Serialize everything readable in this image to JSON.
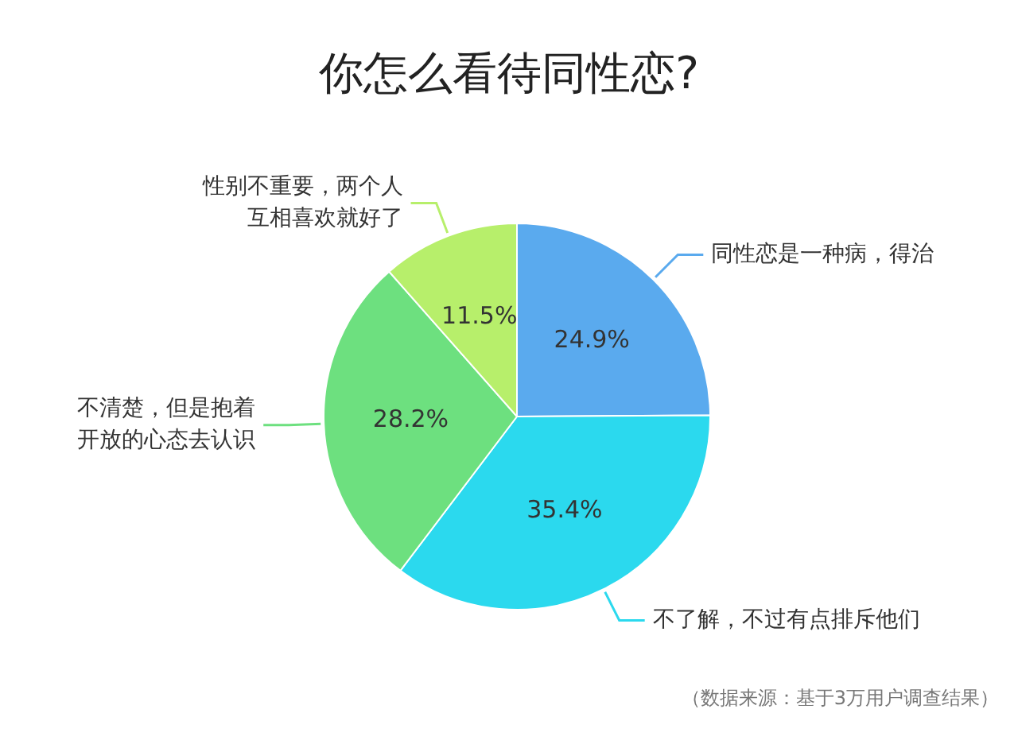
{
  "chart_data": {
    "type": "pie",
    "title": "你怎么看待同性恋?",
    "categories": [
      "同性恋是一种病，得治",
      "不了解，不过有点排斥他们",
      "不清楚，但是抱着开放的心态去认识",
      "性别不重要，两个人互相喜欢就好了"
    ],
    "values": [
      24.9,
      35.4,
      28.2,
      11.5
    ],
    "value_labels": [
      "24.9%",
      "35.4%",
      "28.2%",
      "11.5%"
    ],
    "colors": [
      "#5aaaee",
      "#2bd9ee",
      "#6de07f",
      "#b7ef6b"
    ],
    "annotations": [
      "（数据来源：基于3万用户调查结果）"
    ]
  }
}
